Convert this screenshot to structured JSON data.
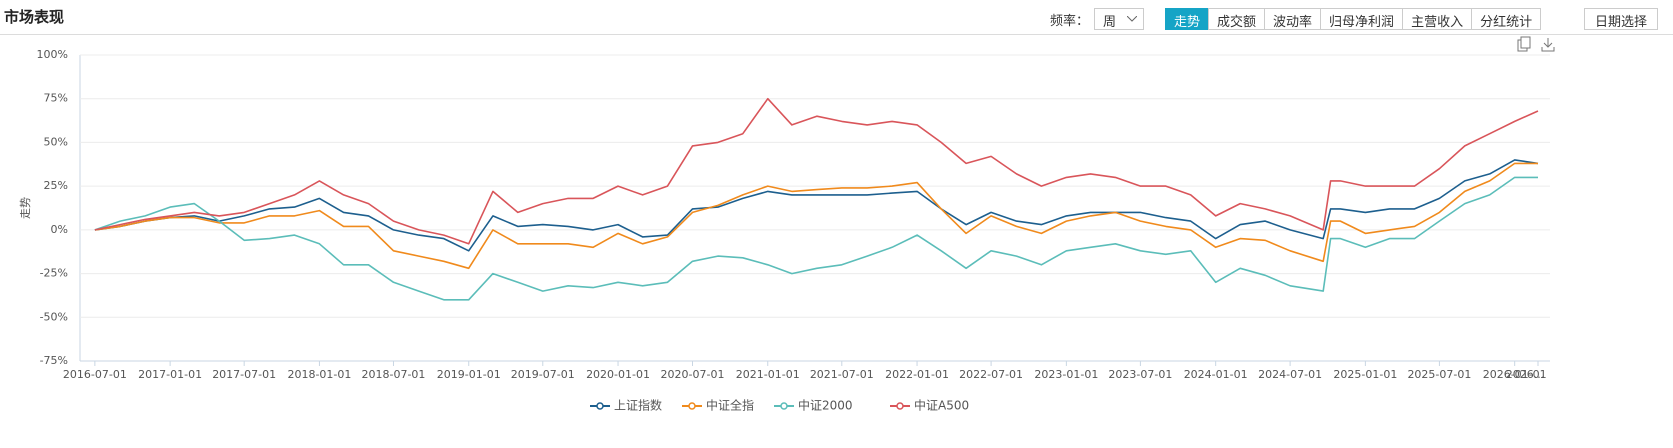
{
  "header": {
    "title": "市场表现",
    "frequency_label": "频率：",
    "frequency": "周",
    "tabs": [
      "走势",
      "成交额",
      "波动率",
      "归母净利润",
      "主营收入",
      "分红统计"
    ],
    "date_button": "日期选择"
  },
  "chart_data": {
    "type": "line",
    "y_label": "走势",
    "x": [
      "2016-07-01",
      "2016-09-01",
      "2016-11-01",
      "2017-01-01",
      "2017-03-01",
      "2017-05-01",
      "2017-07-01",
      "2017-09-01",
      "2017-11-01",
      "2018-01-01",
      "2018-03-01",
      "2018-05-01",
      "2018-07-01",
      "2018-09-01",
      "2018-11-01",
      "2019-01-01",
      "2019-03-01",
      "2019-05-01",
      "2019-07-01",
      "2019-09-01",
      "2019-11-01",
      "2020-01-01",
      "2020-03-01",
      "2020-05-01",
      "2020-07-01",
      "2020-09-01",
      "2020-11-01",
      "2021-01-01",
      "2021-03-01",
      "2021-05-01",
      "2021-07-01",
      "2021-09-01",
      "2021-11-01",
      "2022-01-01",
      "2022-03-01",
      "2022-05-01",
      "2022-07-01",
      "2022-09-01",
      "2022-11-01",
      "2023-01-01",
      "2023-03-01",
      "2023-05-01",
      "2023-07-01",
      "2023-09-01",
      "2023-11-01",
      "2024-01-01",
      "2024-03-01",
      "2024-05-01",
      "2024-07-01",
      "2024-09-20",
      "2024-10-08",
      "2024-11-01",
      "2025-01-01",
      "2025-03-01",
      "2025-05-01",
      "2025-07-01",
      "2025-09-01",
      "2025-11-01",
      "2026-01-01",
      "2026-02-27"
    ],
    "series": [
      {
        "name": "上证指数",
        "color": "#1d5f8e",
        "values": [
          0,
          2,
          5,
          7,
          8,
          5,
          8,
          12,
          13,
          18,
          10,
          8,
          0,
          -3,
          -5,
          -12,
          8,
          2,
          3,
          2,
          0,
          3,
          -4,
          -3,
          12,
          13,
          18,
          22,
          20,
          20,
          20,
          20,
          21,
          22,
          12,
          3,
          10,
          5,
          3,
          8,
          10,
          10,
          10,
          7,
          5,
          -5,
          3,
          5,
          0,
          -5,
          12,
          12,
          10,
          12,
          12,
          18,
          28,
          32,
          40,
          38
        ]
      },
      {
        "name": "中证全指",
        "color": "#f08a1c",
        "values": [
          0,
          2,
          5,
          7,
          7,
          4,
          4,
          8,
          8,
          11,
          2,
          2,
          -12,
          -15,
          -18,
          -22,
          0,
          -8,
          -8,
          -8,
          -10,
          -2,
          -8,
          -4,
          10,
          14,
          20,
          25,
          22,
          23,
          24,
          24,
          25,
          27,
          12,
          -2,
          8,
          2,
          -2,
          5,
          8,
          10,
          5,
          2,
          0,
          -10,
          -5,
          -6,
          -12,
          -18,
          5,
          5,
          -2,
          0,
          2,
          10,
          22,
          28,
          38,
          38
        ]
      },
      {
        "name": "中证2000",
        "color": "#5bbdb9",
        "values": [
          0,
          5,
          8,
          13,
          15,
          5,
          -6,
          -5,
          -3,
          -8,
          -20,
          -20,
          -30,
          -35,
          -40,
          -40,
          -25,
          -30,
          -35,
          -32,
          -33,
          -30,
          -32,
          -30,
          -18,
          -15,
          -16,
          -20,
          -25,
          -22,
          -20,
          -15,
          -10,
          -3,
          -12,
          -22,
          -12,
          -15,
          -20,
          -12,
          -10,
          -8,
          -12,
          -14,
          -12,
          -30,
          -22,
          -26,
          -32,
          -35,
          -5,
          -5,
          -10,
          -5,
          -5,
          5,
          15,
          20,
          30,
          30
        ]
      },
      {
        "name": "中证A500",
        "color": "#d9555a",
        "values": [
          0,
          3,
          6,
          8,
          10,
          8,
          10,
          15,
          20,
          28,
          20,
          15,
          5,
          0,
          -3,
          -8,
          22,
          10,
          15,
          18,
          18,
          25,
          20,
          25,
          48,
          50,
          55,
          75,
          60,
          65,
          62,
          60,
          62,
          60,
          50,
          38,
          42,
          32,
          25,
          30,
          32,
          30,
          25,
          25,
          20,
          8,
          15,
          12,
          8,
          0,
          28,
          28,
          25,
          25,
          25,
          35,
          48,
          55,
          62,
          68
        ]
      }
    ],
    "xlim": [
      "2016-06-24",
      "2026-02-27"
    ],
    "xticks": [
      "2016-07-01",
      "2017-01-01",
      "2017-07-01",
      "2018-01-01",
      "2018-07-01",
      "2019-01-01",
      "2019-07-01",
      "2020-01-01",
      "2020-07-01",
      "2021-01-01",
      "2021-07-01",
      "2022-01-01",
      "2022-07-01",
      "2023-01-01",
      "2023-07-01",
      "2024-01-01",
      "2024-07-01",
      "2025-01-01",
      "2025-07-01",
      "2026-01-01",
      {
        "value": "2026-02-27",
        "label": "2026..."
      }
    ],
    "ylim": [
      -75,
      100
    ],
    "yticks": [
      {
        "value": -75,
        "label": "-75%"
      },
      {
        "value": -50,
        "label": "-50%"
      },
      {
        "value": -25,
        "label": "-25%"
      },
      {
        "value": 0,
        "label": "0%"
      },
      {
        "value": 25,
        "label": "25%"
      },
      {
        "value": 50,
        "label": "50%"
      },
      {
        "value": 75,
        "label": "75%"
      },
      {
        "value": 100,
        "label": "100%"
      }
    ],
    "grid": true,
    "legend": "bottom"
  }
}
